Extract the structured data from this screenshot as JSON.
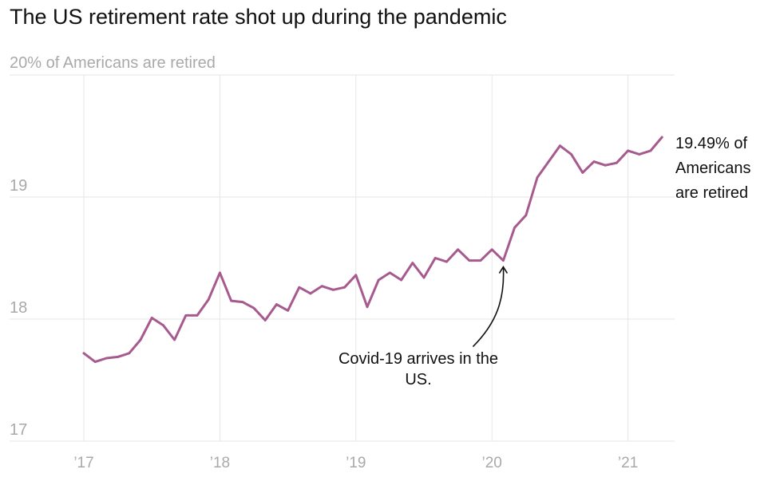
{
  "chart_data": {
    "type": "line",
    "title": "The US retirement rate shot up during the pandemic",
    "ylabel": "20% of Americans are retired",
    "xlabel": "",
    "x_tick_labels": [
      "’17",
      "’18",
      "’19",
      "’20",
      "’21"
    ],
    "y_tick_labels": [
      "17",
      "18",
      "19"
    ],
    "ylim": [
      17,
      20
    ],
    "xlim": [
      "2017-01",
      "2021-04"
    ],
    "grid": true,
    "series_color": "#a75a8e",
    "series": [
      {
        "x": [
          "2017-01",
          "2017-02",
          "2017-03",
          "2017-04",
          "2017-05",
          "2017-06",
          "2017-07",
          "2017-08",
          "2017-09",
          "2017-10",
          "2017-11",
          "2017-12",
          "2018-01",
          "2018-02",
          "2018-03",
          "2018-04",
          "2018-05",
          "2018-06",
          "2018-07",
          "2018-08",
          "2018-09",
          "2018-10",
          "2018-11",
          "2018-12",
          "2019-01",
          "2019-02",
          "2019-03",
          "2019-04",
          "2019-05",
          "2019-06",
          "2019-07",
          "2019-08",
          "2019-09",
          "2019-10",
          "2019-11",
          "2019-12",
          "2020-01",
          "2020-02",
          "2020-03",
          "2020-04",
          "2020-05",
          "2020-06",
          "2020-07",
          "2020-08",
          "2020-09",
          "2020-10",
          "2020-11",
          "2020-12",
          "2021-01",
          "2021-02",
          "2021-03",
          "2021-04"
        ],
        "values": [
          17.72,
          17.65,
          17.68,
          17.69,
          17.72,
          17.83,
          18.01,
          17.95,
          17.83,
          18.03,
          18.03,
          18.16,
          18.38,
          18.15,
          18.14,
          18.09,
          17.99,
          18.12,
          18.07,
          18.26,
          18.21,
          18.27,
          18.24,
          18.26,
          18.36,
          18.1,
          18.32,
          18.38,
          18.32,
          18.46,
          18.34,
          18.5,
          18.47,
          18.57,
          18.48,
          18.48,
          18.57,
          18.48,
          18.75,
          18.85,
          19.16,
          19.29,
          19.42,
          19.35,
          19.2,
          19.29,
          19.26,
          19.28,
          19.38,
          19.35,
          19.38,
          19.49
        ]
      }
    ],
    "annotations": [
      {
        "text_lines": [
          "Covid-19 arrives in the",
          "US."
        ],
        "x": "2020-02",
        "y": 18.48
      },
      {
        "text_lines": [
          "19.49% of",
          "Americans",
          "are retired"
        ],
        "x": "2021-04",
        "y": 19.49
      }
    ]
  }
}
